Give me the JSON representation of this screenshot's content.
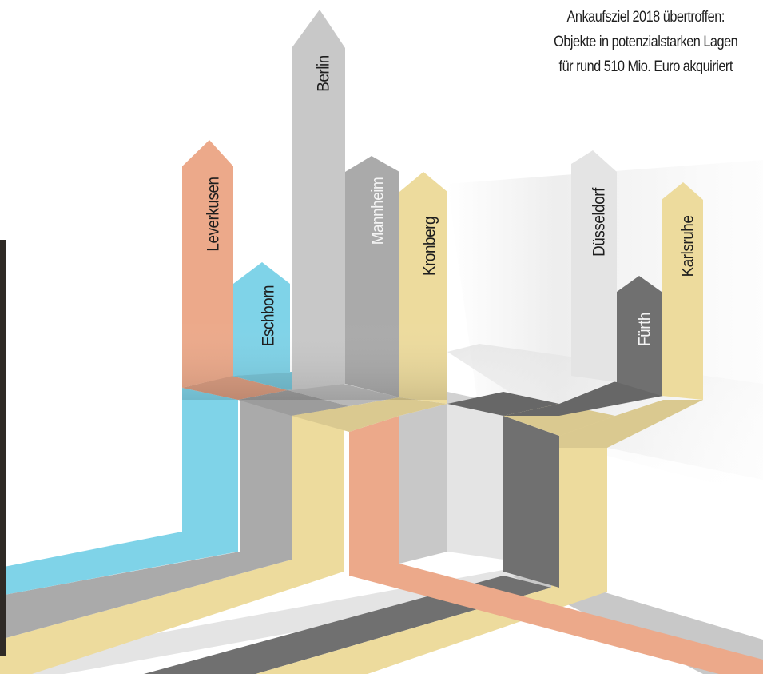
{
  "headline": {
    "line1": "Ankaufsziel 2018 übertroffen:",
    "line2": "Objekte in potenzialstarken Lagen",
    "line3": "für rund 510 Mio. Euro akquiriert"
  },
  "cities": [
    {
      "name": "Leverkusen",
      "color": "#eca98a",
      "label_color": "#1e1e1e"
    },
    {
      "name": "Eschborn",
      "color": "#7fd3e8",
      "label_color": "#1e1e1e"
    },
    {
      "name": "Berlin",
      "color": "#c8c8c8",
      "label_color": "#1e1e1e"
    },
    {
      "name": "Mannheim",
      "color": "#aaaaaa",
      "label_color": "#f4f4f4"
    },
    {
      "name": "Kronberg",
      "color": "#eddb9d",
      "label_color": "#1e1e1e"
    },
    {
      "name": "Düsseldorf",
      "color": "#e4e4e4",
      "label_color": "#1e1e1e"
    },
    {
      "name": "Fürth",
      "color": "#707070",
      "label_color": "#f4f4f4"
    },
    {
      "name": "Karlsruhe",
      "color": "#eddb9d",
      "label_color": "#1e1e1e"
    }
  ],
  "colors": {
    "dark_bar": "#2f2a26"
  }
}
